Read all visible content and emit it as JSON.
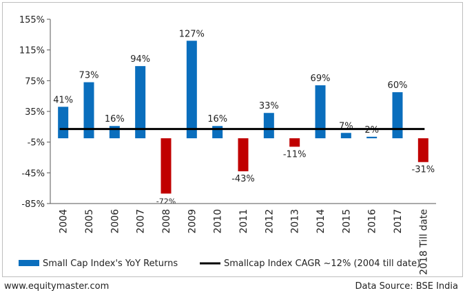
{
  "chart_data": {
    "type": "bar",
    "categories": [
      "2004",
      "2005",
      "2006",
      "2007",
      "2008",
      "2009",
      "2010",
      "2011",
      "2012",
      "2013",
      "2014",
      "2015",
      "2016",
      "2017",
      "2018 Till date"
    ],
    "series": [
      {
        "name": "Small Cap Index's YoY Returns",
        "values": [
          41,
          73,
          16,
          94,
          -72,
          127,
          16,
          -43,
          33,
          -11,
          69,
          7,
          2,
          60,
          -31
        ],
        "labels": [
          "41%",
          "73%",
          "16%",
          "94%",
          "-72%",
          "127%",
          "16%",
          "-43%",
          "33%",
          "-11%",
          "69%",
          "7%",
          "2%",
          "60%",
          "-31%"
        ]
      }
    ],
    "reference_line": {
      "name": "Smallcap Index CAGR ~12% (2004 till date)",
      "value": 12
    },
    "y_ticks": [
      155,
      115,
      75,
      35,
      -5,
      -45,
      -85
    ],
    "y_tick_labels": [
      "155%",
      "115%",
      "75%",
      "35%",
      "-5%",
      "-45%",
      "-85%"
    ],
    "ylim": [
      -85,
      155
    ],
    "colors": {
      "positive": "#0a6ebd",
      "negative": "#c00000",
      "line": "#000000"
    },
    "legend_position": "bottom",
    "grid": false,
    "title": "",
    "xlabel": "",
    "ylabel": ""
  },
  "footer": {
    "site": "www.equitymaster.com",
    "source": "Data Source: BSE India"
  }
}
